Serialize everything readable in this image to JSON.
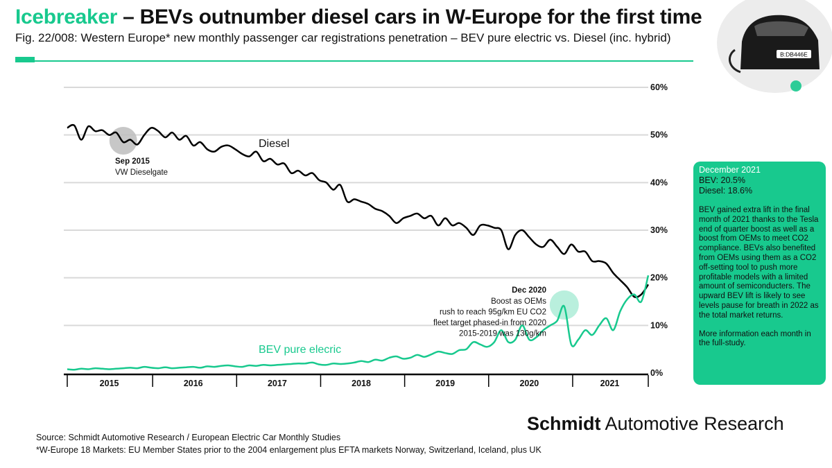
{
  "header": {
    "title_brand": "Icebreaker",
    "title_rest": " – BEVs outnumber diesel cars in W-Europe for the first time",
    "subtitle": "Fig. 22/008: Western Europe* new monthly passenger car registrations penetration – BEV pure electric vs. Diesel (inc. hybrid)"
  },
  "car_plate": "B:DB446E",
  "info_box": {
    "heading": "December 2021",
    "bev": "BEV: 20.5%",
    "diesel": "Diesel: 18.6%",
    "body": "BEV gained extra lift in the final month of 2021 thanks to the Tesla end of quarter boost as well as a boost from OEMs to meet CO2 compliance. BEVs also benefited from OEMs using them as a CO2 off-setting tool to push more profitable models with a limited amount of semiconducters. The upward BEV lift is likely to see levels pause for breath in 2022 as the total market returns.",
    "more": "More information each month in the full-study."
  },
  "footer": {
    "brand_bold": "Schmidt",
    "brand_rest": " Automotive Research",
    "source": "Source: Schmidt Automotive Research / European Electric Car Monthly Studies",
    "footnote": "*W-Europe 18 Markets: EU Member States prior to the 2004 enlargement plus EFTA markets Norway, Switzerland, Iceland, plus UK"
  },
  "colors": {
    "accent": "#18c98e",
    "diesel": "#000000",
    "bev": "#18c98e",
    "grid": "#d9d9d9",
    "highlight_grey": "#bdbdbd"
  },
  "chart_data": {
    "type": "line",
    "x_start": "2015-01",
    "x_end": "2021-12",
    "x_labels": [
      "2015",
      "2016",
      "2017",
      "2018",
      "2019",
      "2020",
      "2021"
    ],
    "ylim": [
      0,
      60
    ],
    "y_ticks": [
      "0%",
      "10%",
      "20%",
      "30%",
      "40%",
      "50%",
      "60%"
    ],
    "grid": "horizontal",
    "series": [
      {
        "name": "Diesel",
        "values": [
          51.5,
          52.0,
          49.0,
          51.8,
          50.8,
          51.0,
          50.0,
          50.5,
          48.5,
          49.0,
          48.0,
          50.0,
          51.5,
          50.8,
          49.5,
          50.5,
          49.0,
          49.8,
          47.8,
          48.5,
          47.0,
          46.5,
          47.5,
          47.8,
          47.0,
          46.0,
          45.5,
          46.5,
          44.5,
          45.0,
          43.8,
          44.0,
          42.0,
          42.5,
          41.5,
          42.0,
          40.5,
          40.0,
          38.5,
          39.5,
          36.0,
          36.5,
          36.0,
          35.5,
          34.5,
          34.0,
          33.0,
          31.5,
          32.5,
          33.0,
          33.5,
          32.5,
          33.0,
          31.0,
          32.5,
          31.0,
          31.5,
          30.5,
          29.0,
          31.0,
          31.0,
          30.5,
          30.0,
          26.0,
          29.0,
          30.0,
          28.5,
          27.0,
          26.5,
          28.0,
          26.5,
          25.0,
          27.0,
          25.5,
          25.5,
          23.5,
          23.5,
          23.0,
          21.0,
          19.5,
          18.0,
          16.0,
          16.5,
          18.6
        ]
      },
      {
        "name": "BEV pure elecric",
        "values": [
          0.8,
          0.7,
          0.9,
          0.8,
          1.0,
          0.9,
          0.8,
          0.9,
          1.0,
          1.1,
          1.0,
          1.3,
          1.1,
          1.0,
          1.2,
          1.0,
          1.1,
          1.2,
          1.3,
          1.1,
          1.4,
          1.3,
          1.5,
          1.6,
          1.4,
          1.3,
          1.6,
          1.5,
          1.7,
          1.6,
          1.7,
          1.8,
          1.9,
          2.0,
          2.0,
          2.2,
          1.8,
          1.7,
          2.0,
          1.9,
          2.0,
          2.2,
          2.5,
          2.3,
          2.8,
          2.6,
          3.2,
          3.5,
          3.0,
          3.2,
          3.8,
          3.4,
          3.9,
          4.5,
          4.2,
          4.0,
          4.8,
          5.0,
          6.5,
          6.0,
          5.5,
          6.5,
          9.0,
          6.5,
          7.0,
          10.0,
          7.0,
          7.5,
          9.0,
          10.0,
          11.0,
          14.0,
          6.0,
          7.0,
          9.0,
          8.0,
          10.0,
          11.5,
          9.0,
          13.0,
          15.5,
          16.5,
          15.0,
          20.5
        ]
      }
    ],
    "labels": {
      "diesel_series": "Diesel",
      "bev_series": "BEV pure elecric"
    },
    "annotations": [
      {
        "date": "2015-09",
        "title": "Sep 2015",
        "text": "VW Dieselgate"
      },
      {
        "date": "2020-12",
        "title": "Dec 2020",
        "lines": [
          "Boost as OEMs",
          "rush to reach 95g/km EU CO2",
          "fleet target phased-in from 2020",
          "2015-2019 was 130g/km"
        ]
      }
    ]
  }
}
